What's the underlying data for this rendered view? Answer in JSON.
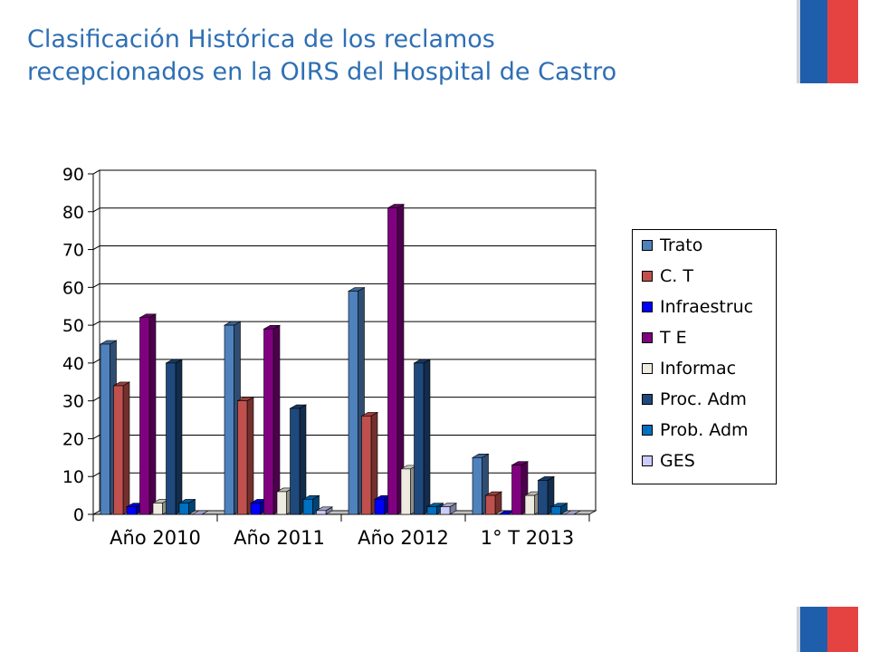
{
  "slide": {
    "title_line1": "Clasificación Histórica de los reclamos",
    "title_line2": "recepcionados en la OIRS del Hospital de Castro"
  },
  "colors": {
    "title": "#2e6fb4",
    "flag_blue": "#1f5eaa",
    "flag_red": "#e54242"
  },
  "chart_data": {
    "type": "bar",
    "title": "",
    "xlabel": "",
    "ylabel": "",
    "categories": [
      "Año 2010",
      "Año 2011",
      "Año 2012",
      "1° T 2013"
    ],
    "ylim": [
      0,
      90
    ],
    "yticks": [
      0,
      10,
      20,
      30,
      40,
      50,
      60,
      70,
      80,
      90
    ],
    "grid": true,
    "legend_position": "right",
    "series": [
      {
        "name": "Trato",
        "color": "#4f81bd",
        "values": [
          45,
          50,
          59,
          15
        ]
      },
      {
        "name": "C. T",
        "color": "#c0504d",
        "values": [
          34,
          30,
          26,
          5
        ]
      },
      {
        "name": "Infraestruc",
        "color": "#0000ff",
        "values": [
          2,
          3,
          4,
          0
        ]
      },
      {
        "name": "T E",
        "color": "#800080",
        "values": [
          52,
          49,
          81,
          13
        ]
      },
      {
        "name": "Informac",
        "color": "#eeece1",
        "values": [
          3,
          6,
          12,
          5
        ]
      },
      {
        "name": "Proc. Adm",
        "color": "#1f497d",
        "values": [
          40,
          28,
          40,
          9
        ]
      },
      {
        "name": "Prob. Adm",
        "color": "#0070c0",
        "values": [
          3,
          4,
          2,
          2
        ]
      },
      {
        "name": "GES",
        "color": "#ccccff",
        "values": [
          0,
          1,
          2,
          0
        ]
      }
    ]
  }
}
